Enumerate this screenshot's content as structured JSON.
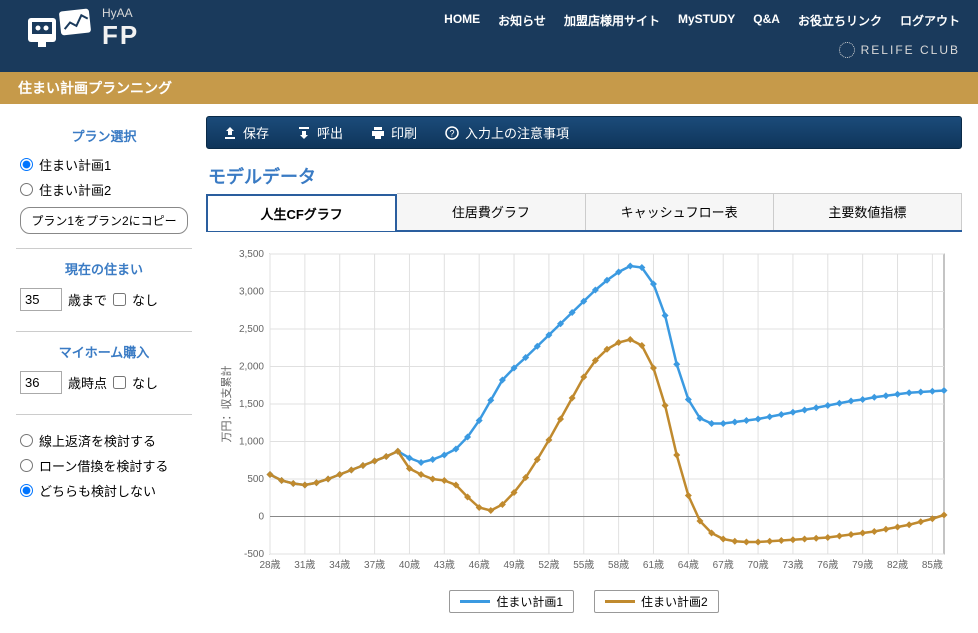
{
  "header": {
    "brand_name": "HyAA",
    "logo_text": "FP",
    "nav": [
      "HOME",
      "お知らせ",
      "加盟店様用サイト",
      "MySTUDY",
      "Q&A",
      "お役立ちリンク",
      "ログアウト"
    ],
    "subbrand": "RELIFE CLUB"
  },
  "subtitle": "住まい計画プランニング",
  "sidebar": {
    "plan_select": {
      "heading": "プラン選択",
      "options": [
        "住まい計画1",
        "住まい計画2"
      ],
      "selected": 0,
      "copy_btn": "プラン1をプラン2にコピー"
    },
    "current_home": {
      "heading": "現在の住まい",
      "value": "35",
      "suffix": "歳まで",
      "none_label": "なし"
    },
    "myhome": {
      "heading": "マイホーム購入",
      "value": "36",
      "suffix": "歳時点",
      "none_label": "なし"
    },
    "review": {
      "options": [
        "線上返済を検討する",
        "ローン借換を検討する",
        "どちらも検討しない"
      ],
      "selected": 2
    }
  },
  "toolbar": {
    "save": "保存",
    "load": "呼出",
    "print": "印刷",
    "notes": "入力上の注意事項"
  },
  "section_title": "モデルデータ",
  "tabs": {
    "items": [
      "人生CFグラフ",
      "住居費グラフ",
      "キャッシュフロー表",
      "主要数値指標"
    ],
    "active": 0
  },
  "chart": {
    "type": "line",
    "ylabel": "万円：収支累計",
    "ylabel_fontsize": 11,
    "x_categories": [
      "28歳",
      "31歳",
      "34歳",
      "37歳",
      "40歳",
      "43歳",
      "46歳",
      "49歳",
      "52歳",
      "55歳",
      "58歳",
      "61歳",
      "64歳",
      "67歳",
      "70歳",
      "73歳",
      "76歳",
      "79歳",
      "82歳",
      "85歳"
    ],
    "xlim_ages": [
      28,
      86
    ],
    "ylim": [
      -500,
      3500
    ],
    "ytick_step": 500,
    "background_color": "#ffffff",
    "grid_color": "#e0e0e0",
    "axis_color": "#888888",
    "tick_fontsize": 10,
    "tick_color": "#666666",
    "line_width": 2.5,
    "marker_style": "diamond",
    "marker_size": 3.5,
    "series": [
      {
        "name": "住まい計画1",
        "color": "#3b9ae1",
        "points": [
          [
            28,
            560
          ],
          [
            29,
            480
          ],
          [
            30,
            440
          ],
          [
            31,
            420
          ],
          [
            32,
            450
          ],
          [
            33,
            500
          ],
          [
            34,
            560
          ],
          [
            35,
            620
          ],
          [
            36,
            680
          ],
          [
            37,
            740
          ],
          [
            38,
            800
          ],
          [
            39,
            870
          ],
          [
            40,
            780
          ],
          [
            41,
            720
          ],
          [
            42,
            760
          ],
          [
            43,
            820
          ],
          [
            44,
            900
          ],
          [
            45,
            1060
          ],
          [
            46,
            1280
          ],
          [
            47,
            1550
          ],
          [
            48,
            1820
          ],
          [
            49,
            1980
          ],
          [
            50,
            2120
          ],
          [
            51,
            2270
          ],
          [
            52,
            2420
          ],
          [
            53,
            2570
          ],
          [
            54,
            2720
          ],
          [
            55,
            2870
          ],
          [
            56,
            3020
          ],
          [
            57,
            3150
          ],
          [
            58,
            3260
          ],
          [
            59,
            3340
          ],
          [
            60,
            3320
          ],
          [
            61,
            3100
          ],
          [
            62,
            2680
          ],
          [
            63,
            2030
          ],
          [
            64,
            1560
          ],
          [
            65,
            1310
          ],
          [
            66,
            1240
          ],
          [
            67,
            1240
          ],
          [
            68,
            1260
          ],
          [
            69,
            1280
          ],
          [
            70,
            1300
          ],
          [
            71,
            1330
          ],
          [
            72,
            1360
          ],
          [
            73,
            1390
          ],
          [
            74,
            1420
          ],
          [
            75,
            1450
          ],
          [
            76,
            1480
          ],
          [
            77,
            1510
          ],
          [
            78,
            1540
          ],
          [
            79,
            1560
          ],
          [
            80,
            1590
          ],
          [
            81,
            1610
          ],
          [
            82,
            1630
          ],
          [
            83,
            1650
          ],
          [
            84,
            1660
          ],
          [
            85,
            1670
          ],
          [
            86,
            1680
          ]
        ]
      },
      {
        "name": "住まい計画2",
        "color": "#c08a2e",
        "points": [
          [
            28,
            560
          ],
          [
            29,
            480
          ],
          [
            30,
            440
          ],
          [
            31,
            420
          ],
          [
            32,
            450
          ],
          [
            33,
            500
          ],
          [
            34,
            560
          ],
          [
            35,
            620
          ],
          [
            36,
            680
          ],
          [
            37,
            740
          ],
          [
            38,
            800
          ],
          [
            39,
            870
          ],
          [
            40,
            640
          ],
          [
            41,
            560
          ],
          [
            42,
            500
          ],
          [
            43,
            480
          ],
          [
            44,
            420
          ],
          [
            45,
            260
          ],
          [
            46,
            120
          ],
          [
            47,
            80
          ],
          [
            48,
            160
          ],
          [
            49,
            320
          ],
          [
            50,
            520
          ],
          [
            51,
            760
          ],
          [
            52,
            1020
          ],
          [
            53,
            1300
          ],
          [
            54,
            1580
          ],
          [
            55,
            1860
          ],
          [
            56,
            2080
          ],
          [
            57,
            2230
          ],
          [
            58,
            2320
          ],
          [
            59,
            2360
          ],
          [
            60,
            2280
          ],
          [
            61,
            1980
          ],
          [
            62,
            1480
          ],
          [
            63,
            820
          ],
          [
            64,
            280
          ],
          [
            65,
            -60
          ],
          [
            66,
            -220
          ],
          [
            67,
            -300
          ],
          [
            68,
            -330
          ],
          [
            69,
            -340
          ],
          [
            70,
            -340
          ],
          [
            71,
            -330
          ],
          [
            72,
            -320
          ],
          [
            73,
            -310
          ],
          [
            74,
            -300
          ],
          [
            75,
            -290
          ],
          [
            76,
            -280
          ],
          [
            77,
            -260
          ],
          [
            78,
            -240
          ],
          [
            79,
            -220
          ],
          [
            80,
            -200
          ],
          [
            81,
            -170
          ],
          [
            82,
            -140
          ],
          [
            83,
            -110
          ],
          [
            84,
            -70
          ],
          [
            85,
            -30
          ],
          [
            86,
            20
          ]
        ]
      }
    ]
  }
}
